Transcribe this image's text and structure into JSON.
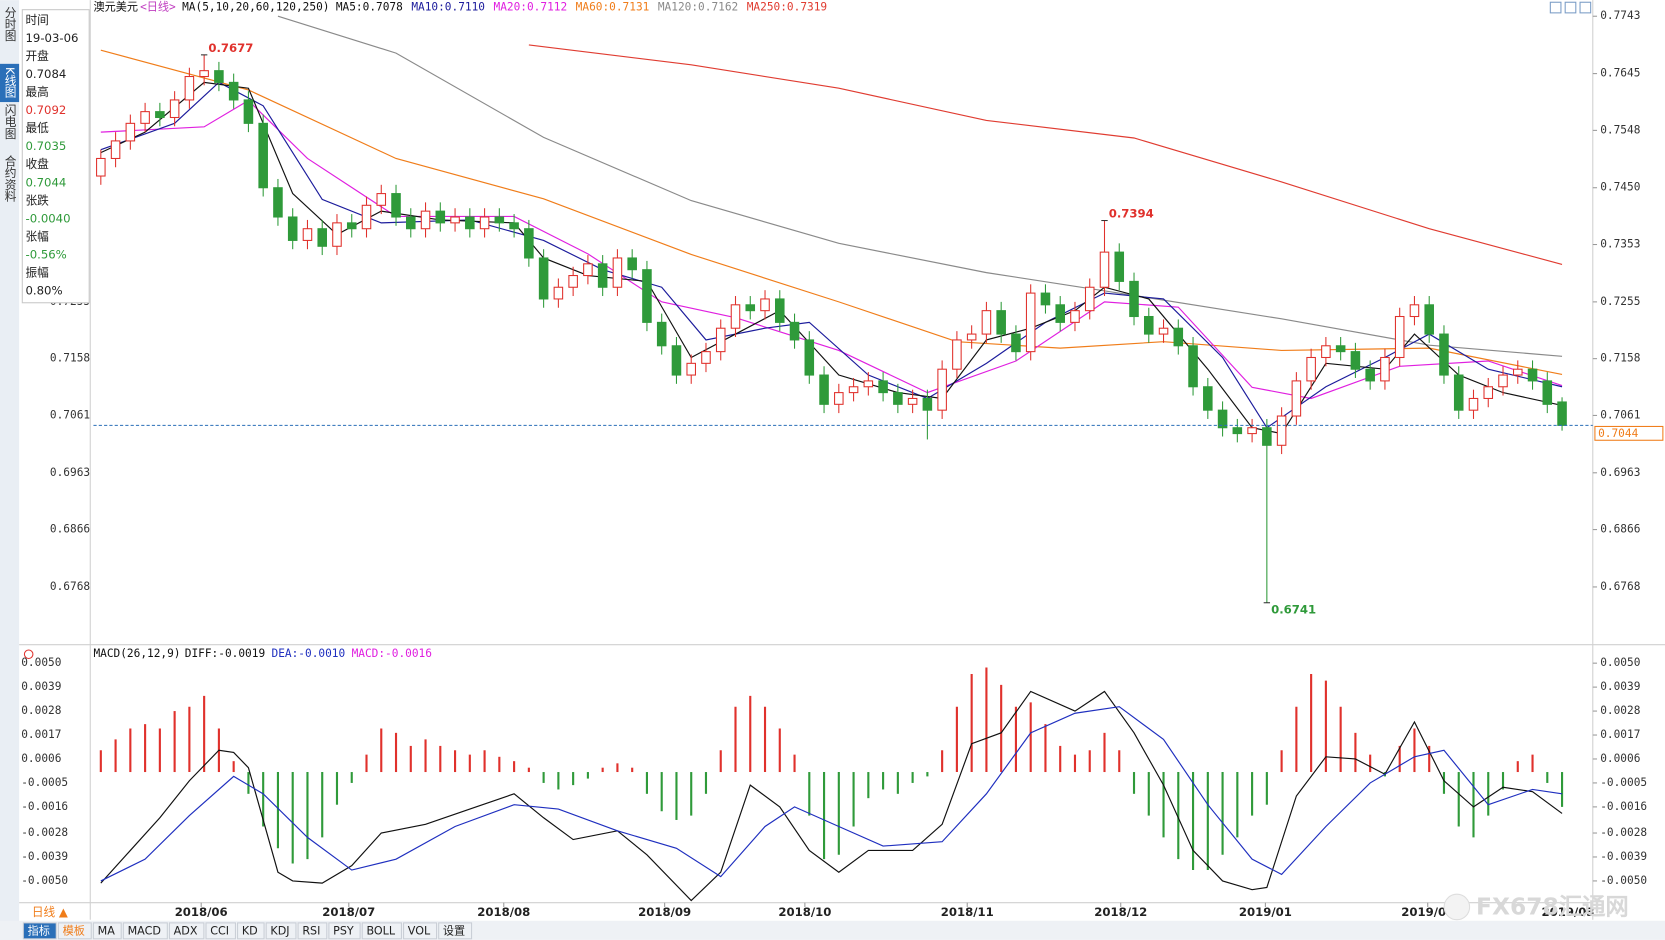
{
  "chart_data": [
    {
      "type": "candlestick",
      "title": "澳元美元",
      "subtitle": "<日线>",
      "indicator": "MA(5,10,20,60,120,250)",
      "xlim": [
        0,
        100
      ],
      "ylim": [
        0.6673,
        0.7756
      ],
      "yticks": [
        0.7743,
        0.7645,
        0.7548,
        {
          "value": 0.745,
          "label": "0.7450"
        },
        0.7353,
        0.7255,
        0.7158,
        0.7061,
        0.6963,
        0.6866,
        0.6768
      ],
      "grid": false,
      "up_color": "#e0312c",
      "down_color": "#2f9a3a",
      "price_line": true,
      "price_line_color": "#2a6fb8",
      "price_label_color": "#f07d1a",
      "open": [
        0.747,
        0.75,
        0.753,
        0.756,
        0.758,
        0.757,
        0.76,
        0.764,
        0.765,
        0.763,
        0.76,
        0.756,
        0.745,
        0.74,
        0.736,
        0.738,
        0.735,
        0.739,
        0.738,
        0.742,
        0.744,
        0.74,
        0.738,
        0.741,
        0.739,
        0.74,
        0.738,
        0.74,
        0.739,
        0.738,
        0.733,
        0.726,
        0.728,
        0.73,
        0.732,
        0.728,
        0.733,
        0.731,
        0.722,
        0.718,
        0.713,
        0.715,
        0.717,
        0.721,
        0.725,
        0.724,
        0.726,
        0.722,
        0.719,
        0.713,
        0.708,
        0.71,
        0.711,
        0.712,
        0.71,
        0.708,
        0.709,
        0.707,
        0.714,
        0.719,
        0.72,
        0.724,
        0.72,
        0.717,
        0.727,
        0.725,
        0.722,
        0.724,
        0.728,
        0.734,
        0.729,
        0.723,
        0.72,
        0.721,
        0.718,
        0.711,
        0.707,
        0.704,
        0.703,
        0.704,
        0.701,
        0.706,
        0.712,
        0.716,
        0.718,
        0.717,
        0.714,
        0.712,
        0.716,
        0.723,
        0.725,
        0.72,
        0.713,
        0.707,
        0.709,
        0.711,
        0.713,
        0.714,
        0.712,
        0.7084
      ],
      "high": [
        0.7515,
        0.7545,
        0.7575,
        0.7595,
        0.7595,
        0.7615,
        0.7655,
        0.7677,
        0.7665,
        0.7645,
        0.7615,
        0.7575,
        0.7465,
        0.7415,
        0.7395,
        0.7395,
        0.7405,
        0.7405,
        0.7435,
        0.7455,
        0.7455,
        0.7415,
        0.7425,
        0.7425,
        0.7415,
        0.7415,
        0.7415,
        0.7415,
        0.7405,
        0.7395,
        0.7345,
        0.7295,
        0.7315,
        0.7335,
        0.7335,
        0.7345,
        0.7345,
        0.7325,
        0.7235,
        0.7195,
        0.7165,
        0.7185,
        0.7225,
        0.7265,
        0.7265,
        0.7275,
        0.7275,
        0.7235,
        0.7205,
        0.7145,
        0.7115,
        0.7125,
        0.7135,
        0.7135,
        0.7115,
        0.7105,
        0.7105,
        0.7155,
        0.7205,
        0.7215,
        0.7255,
        0.7255,
        0.7215,
        0.7285,
        0.7285,
        0.7265,
        0.7255,
        0.7295,
        0.7394,
        0.7355,
        0.7305,
        0.7245,
        0.7225,
        0.7225,
        0.7195,
        0.7125,
        0.7085,
        0.7055,
        0.7055,
        0.7055,
        0.7075,
        0.7135,
        0.7175,
        0.7195,
        0.7195,
        0.7185,
        0.7155,
        0.7175,
        0.7245,
        0.7265,
        0.7265,
        0.7215,
        0.7145,
        0.7105,
        0.7125,
        0.7145,
        0.7155,
        0.7155,
        0.7135,
        0.7092
      ],
      "low": [
        0.7455,
        0.7485,
        0.7515,
        0.7545,
        0.7555,
        0.7555,
        0.7585,
        0.7625,
        0.7615,
        0.7585,
        0.7545,
        0.7435,
        0.7385,
        0.7345,
        0.7345,
        0.7335,
        0.7335,
        0.7365,
        0.7365,
        0.7405,
        0.7385,
        0.7365,
        0.7365,
        0.7375,
        0.7375,
        0.7365,
        0.7365,
        0.7375,
        0.7365,
        0.7315,
        0.7245,
        0.7245,
        0.7265,
        0.7285,
        0.7265,
        0.7265,
        0.7295,
        0.7205,
        0.7165,
        0.7115,
        0.7115,
        0.7135,
        0.7155,
        0.7195,
        0.7225,
        0.7225,
        0.7205,
        0.7175,
        0.7115,
        0.7065,
        0.7065,
        0.7085,
        0.7095,
        0.7085,
        0.7065,
        0.7065,
        0.702,
        0.7055,
        0.7125,
        0.7175,
        0.7185,
        0.7185,
        0.7155,
        0.7155,
        0.7235,
        0.7205,
        0.7205,
        0.7225,
        0.7265,
        0.7275,
        0.7215,
        0.7185,
        0.7185,
        0.7165,
        0.7095,
        0.7055,
        0.7025,
        0.7015,
        0.7015,
        0.6741,
        0.6995,
        0.7045,
        0.7105,
        0.7145,
        0.7155,
        0.7125,
        0.7105,
        0.7105,
        0.7145,
        0.7215,
        0.7185,
        0.7115,
        0.7055,
        0.7055,
        0.7075,
        0.7095,
        0.7115,
        0.7105,
        0.7065,
        0.7035
      ],
      "close": [
        0.75,
        0.753,
        0.756,
        0.758,
        0.757,
        0.76,
        0.764,
        0.765,
        0.763,
        0.76,
        0.756,
        0.745,
        0.74,
        0.736,
        0.738,
        0.735,
        0.739,
        0.738,
        0.742,
        0.744,
        0.74,
        0.738,
        0.741,
        0.739,
        0.74,
        0.738,
        0.74,
        0.739,
        0.738,
        0.733,
        0.726,
        0.728,
        0.73,
        0.732,
        0.728,
        0.733,
        0.731,
        0.722,
        0.718,
        0.713,
        0.715,
        0.717,
        0.721,
        0.725,
        0.724,
        0.726,
        0.722,
        0.719,
        0.713,
        0.708,
        0.71,
        0.711,
        0.712,
        0.71,
        0.708,
        0.709,
        0.707,
        0.714,
        0.719,
        0.72,
        0.724,
        0.72,
        0.717,
        0.727,
        0.725,
        0.722,
        0.724,
        0.728,
        0.734,
        0.729,
        0.723,
        0.72,
        0.721,
        0.718,
        0.711,
        0.707,
        0.704,
        0.703,
        0.704,
        0.701,
        0.706,
        0.712,
        0.716,
        0.718,
        0.717,
        0.714,
        0.712,
        0.716,
        0.723,
        0.725,
        0.72,
        0.713,
        0.707,
        0.709,
        0.711,
        0.713,
        0.714,
        0.712,
        0.708,
        0.7044
      ],
      "annotations": [
        {
          "x": 7,
          "y": 0.7677,
          "text": "0.7677"
        },
        {
          "x": 68,
          "y": 0.7394,
          "text": "0.7394"
        },
        {
          "x": 79,
          "y": 0.6741,
          "text": "0.6741"
        }
      ],
      "series": [
        {
          "name": "MA5:0.7078",
          "color": "#111111",
          "x": [
            0,
            3,
            7,
            10,
            13,
            16,
            19,
            23,
            28,
            30,
            33,
            37,
            40,
            43,
            46,
            50,
            54,
            57,
            60,
            63,
            66,
            68,
            71,
            75,
            78,
            80,
            83,
            87,
            89,
            92,
            95,
            99
          ],
          "values": [
            0.751,
            0.7545,
            0.763,
            0.762,
            0.744,
            0.737,
            0.741,
            0.7395,
            0.739,
            0.733,
            0.73,
            0.729,
            0.716,
            0.72,
            0.724,
            0.713,
            0.71,
            0.709,
            0.719,
            0.721,
            0.724,
            0.728,
            0.726,
            0.714,
            0.704,
            0.703,
            0.715,
            0.714,
            0.72,
            0.713,
            0.71,
            0.7078
          ]
        },
        {
          "name": "MA10:0.7110",
          "color": "#1c1c9c",
          "x": [
            0,
            5,
            8,
            11,
            15,
            19,
            25,
            30,
            34,
            38,
            41,
            45,
            48,
            52,
            56,
            60,
            64,
            68,
            72,
            76,
            79,
            83,
            87,
            90,
            94,
            99
          ],
          "values": [
            0.7515,
            0.756,
            0.763,
            0.759,
            0.743,
            0.739,
            0.7395,
            0.736,
            0.731,
            0.728,
            0.719,
            0.721,
            0.722,
            0.713,
            0.709,
            0.715,
            0.722,
            0.727,
            0.726,
            0.716,
            0.704,
            0.711,
            0.716,
            0.72,
            0.714,
            0.711
          ]
        },
        {
          "name": "MA20:0.7112",
          "color": "#e020e0",
          "x": [
            0,
            7,
            10,
            14,
            20,
            28,
            33,
            38,
            43,
            50,
            56,
            62,
            68,
            73,
            78,
            82,
            88,
            94,
            99
          ],
          "values": [
            0.7545,
            0.7554,
            0.7599,
            0.75,
            0.7401,
            0.7401,
            0.7337,
            0.7255,
            0.7228,
            0.7172,
            0.71,
            0.7154,
            0.7255,
            0.7246,
            0.7109,
            0.709,
            0.7145,
            0.7154,
            0.7112
          ]
        },
        {
          "name": "MA60:0.7131",
          "color": "#f07d1a",
          "x": [
            0,
            10,
            20,
            30,
            40,
            50,
            58,
            65,
            72,
            80,
            90,
            99
          ],
          "values": [
            0.7685,
            0.7617,
            0.75,
            0.7431,
            0.7336,
            0.7255,
            0.7187,
            0.7176,
            0.7187,
            0.7172,
            0.7176,
            0.7131
          ]
        },
        {
          "name": "MA120:0.7162",
          "color": "#8a8a8a",
          "x": [
            12,
            20,
            30,
            40,
            50,
            60,
            70,
            80,
            90,
            99
          ],
          "values": [
            0.7743,
            0.768,
            0.7536,
            0.7428,
            0.7355,
            0.7305,
            0.7266,
            0.7226,
            0.7181,
            0.7162
          ]
        },
        {
          "name": "MA250:0.7319",
          "color": "#e03c31",
          "x": [
            29,
            40,
            50,
            60,
            70,
            80,
            90,
            99
          ],
          "values": [
            0.7694,
            0.766,
            0.762,
            0.7565,
            0.7535,
            0.746,
            0.738,
            0.7319
          ]
        }
      ]
    },
    {
      "type": "macd",
      "title": "MACD(26,12,9)",
      "xlim": [
        0,
        100
      ],
      "ylim": [
        -0.006,
        0.0058
      ],
      "yticks": [
        {
          "value": 0.005,
          "label": "0.0050"
        },
        0.0039,
        0.0028,
        0.0017,
        0.0006,
        -0.0005,
        -0.0016,
        -0.0028,
        -0.0039,
        {
          "value": -0.005,
          "label": "-0.0050"
        }
      ],
      "xticks": [
        {
          "value": 7.3,
          "label": "2018/06"
        },
        {
          "value": 17.3,
          "label": "2018/07"
        },
        {
          "value": 27.8,
          "label": "2018/08"
        },
        {
          "value": 38.7,
          "label": "2018/09"
        },
        {
          "value": 48.2,
          "label": "2018/10"
        },
        {
          "value": 59.2,
          "label": "2018/11"
        },
        {
          "value": 69.6,
          "label": "2018/12"
        },
        {
          "value": 79.4,
          "label": "2019/01"
        },
        {
          "value": 90.4,
          "label": "2019/02"
        },
        {
          "value": 99.9,
          "label": "2019/03"
        }
      ],
      "series": [
        {
          "name": "DIFF:-0.0019",
          "color": "#111111",
          "x": [
            0,
            2,
            4,
            6,
            8,
            9,
            10,
            12,
            13,
            15,
            17,
            19,
            22,
            25,
            28,
            30,
            32,
            35,
            37,
            40,
            42,
            44,
            46,
            48,
            50,
            52,
            55,
            57,
            59,
            61,
            63,
            66,
            68,
            70,
            72,
            74,
            76,
            78,
            79,
            81,
            83,
            85,
            87,
            89,
            91,
            93,
            95,
            97,
            99
          ],
          "values": [
            -0.0051,
            -0.0036,
            -0.0021,
            -0.0004,
            0.001,
            0.0009,
            0.0002,
            -0.0046,
            -0.005,
            -0.0051,
            -0.0043,
            -0.0028,
            -0.0024,
            -0.0017,
            -0.001,
            -0.0021,
            -0.0031,
            -0.0027,
            -0.0038,
            -0.0059,
            -0.0046,
            -0.0006,
            -0.0016,
            -0.0036,
            -0.0046,
            -0.0036,
            -0.0036,
            -0.0024,
            0.0013,
            0.0018,
            0.0037,
            0.0028,
            0.0037,
            0.0018,
            -0.0006,
            -0.0036,
            -0.005,
            -0.0054,
            -0.0053,
            -0.0011,
            0.0007,
            0.0006,
            -0.0001,
            0.0023,
            -0.0004,
            -0.0016,
            -0.0007,
            -0.0009,
            -0.0019
          ]
        },
        {
          "name": "DEA:-0.0010",
          "color": "#1f2fbf",
          "x": [
            0,
            3,
            6,
            9,
            11,
            14,
            17,
            20,
            24,
            28,
            31,
            35,
            39,
            42,
            45,
            47,
            50,
            53,
            57,
            60,
            63,
            66,
            69,
            72,
            75,
            78,
            80,
            83,
            86,
            89,
            91,
            94,
            97,
            99
          ],
          "values": [
            -0.005,
            -0.004,
            -0.002,
            -0.0002,
            -0.001,
            -0.003,
            -0.0045,
            -0.004,
            -0.0025,
            -0.0015,
            -0.0017,
            -0.0027,
            -0.0035,
            -0.0048,
            -0.0025,
            -0.0016,
            -0.0025,
            -0.0034,
            -0.0032,
            -0.001,
            0.0018,
            0.0027,
            0.003,
            0.0015,
            -0.0015,
            -0.004,
            -0.0047,
            -0.0025,
            -0.0005,
            0.0007,
            0.001,
            -0.0015,
            -0.0008,
            -0.001
          ]
        }
      ],
      "histogram": {
        "name": "MACD:-0.0016",
        "legend_color": "#e020e0",
        "up_color": "#e0312c",
        "down_color": "#2f9a3a",
        "values": [
          0.001,
          0.0015,
          0.002,
          0.0022,
          0.002,
          0.0028,
          0.003,
          0.0035,
          0.002,
          0.0005,
          -0.001,
          -0.0025,
          -0.0035,
          -0.0042,
          -0.004,
          -0.003,
          -0.0015,
          -0.0005,
          0.0008,
          0.002,
          0.0018,
          0.0012,
          0.0015,
          0.0012,
          0.001,
          0.0008,
          0.001,
          0.0007,
          0.0005,
          0.0002,
          -0.0005,
          -0.0008,
          -0.0006,
          -0.0003,
          0.0002,
          0.0004,
          0.0002,
          -0.001,
          -0.0018,
          -0.0022,
          -0.002,
          -0.001,
          0.001,
          0.003,
          0.0035,
          0.003,
          0.002,
          0.0008,
          -0.002,
          -0.004,
          -0.0038,
          -0.0025,
          -0.0012,
          -0.0008,
          -0.001,
          -0.0005,
          -0.0002,
          0.001,
          0.003,
          0.0045,
          0.0048,
          0.004,
          0.003,
          0.0032,
          0.0022,
          0.0012,
          0.0008,
          0.001,
          0.0018,
          0.001,
          -0.001,
          -0.002,
          -0.003,
          -0.004,
          -0.0045,
          -0.0045,
          -0.0038,
          -0.003,
          -0.002,
          -0.0015,
          0.001,
          0.003,
          0.0045,
          0.0042,
          0.003,
          0.0018,
          0.0008,
          -0.0002,
          0.0012,
          0.002,
          0.0012,
          -0.001,
          -0.0025,
          -0.003,
          -0.002,
          -0.0008,
          0.0005,
          0.0008,
          -0.0005,
          -0.0016
        ]
      }
    }
  ],
  "ui": {
    "sidebar": [
      "分时图",
      "K线图",
      "闪电图",
      "合约资料"
    ],
    "info_labels": [
      "时间",
      "开盘",
      "最高",
      "最低",
      "收盘",
      "张跌",
      "张幅",
      "振幅"
    ],
    "info_values": {
      "date": "19-03-06",
      "change": "-0.0040",
      "change_pct": "-0.56%",
      "amplitude": "0.80%"
    },
    "timeframe": "日线 ▲",
    "tabs": [
      "指标",
      "模板",
      "MA",
      "MACD",
      "ADX",
      "CCI",
      "KD",
      "KDJ",
      "RSI",
      "PSY",
      "BOLL",
      "VOL",
      "设置"
    ],
    "watermark": "FX678汇通网"
  }
}
